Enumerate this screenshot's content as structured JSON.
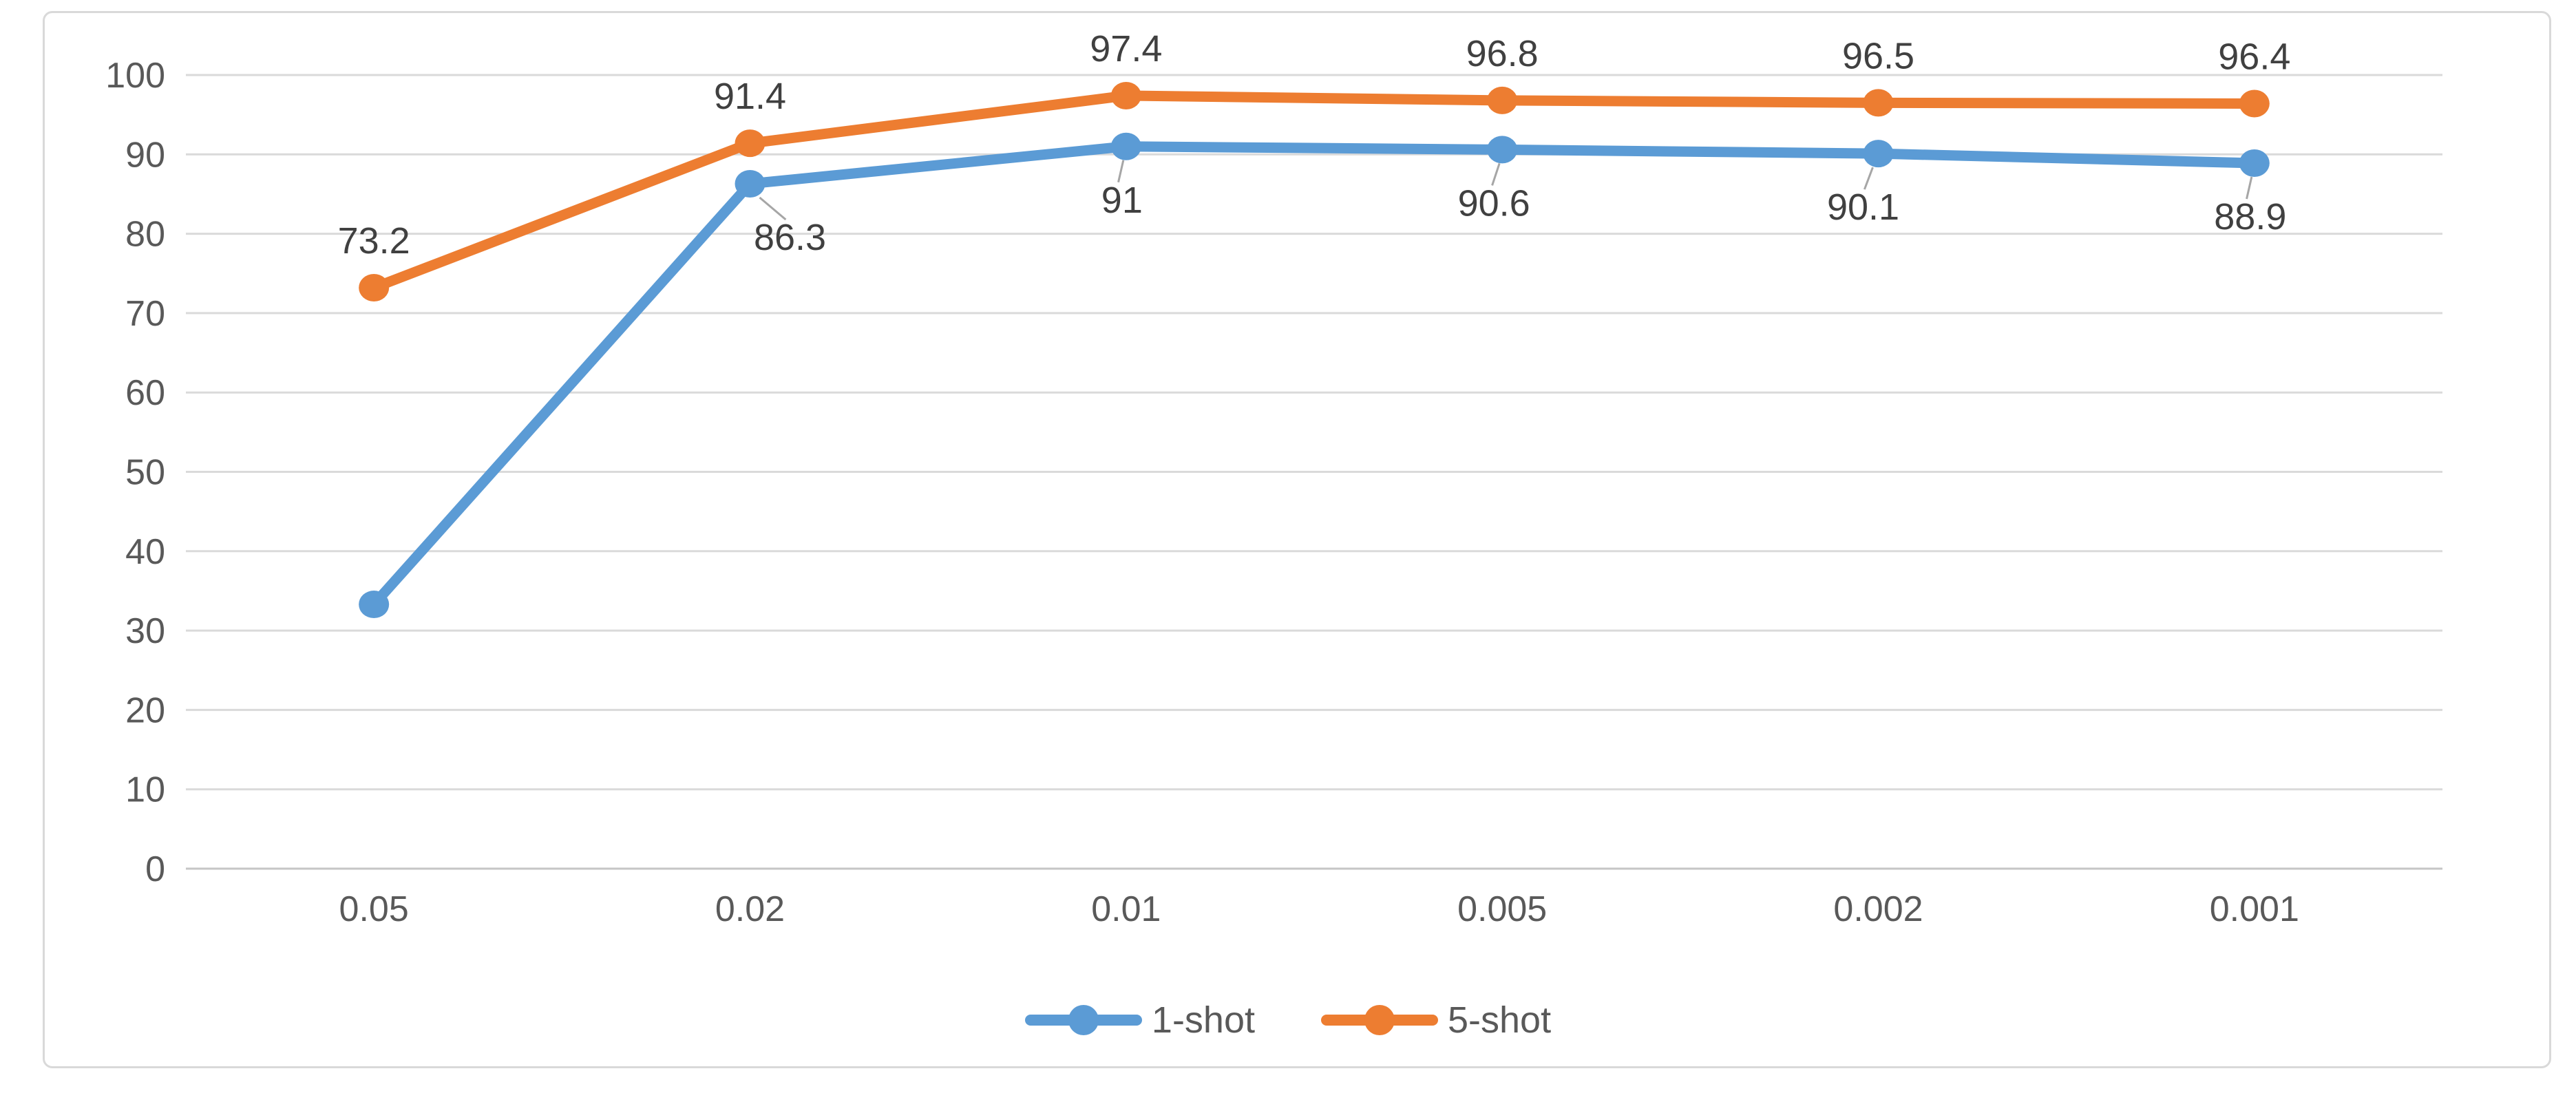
{
  "chart_data": {
    "type": "line",
    "title": "",
    "xlabel": "",
    "ylabel": "",
    "categories": [
      "0.05",
      "0.02",
      "0.01",
      "0.005",
      "0.002",
      "0.001"
    ],
    "series": [
      {
        "name": "1-shot",
        "color": "#5B9BD5",
        "values": [
          33.3,
          86.3,
          91,
          90.6,
          90.1,
          88.9
        ],
        "labels": [
          "",
          "86.3",
          "91",
          "90.6",
          "90.1",
          "88.9"
        ],
        "label_position": "below"
      },
      {
        "name": "5-shot",
        "color": "#ED7D31",
        "values": [
          73.2,
          91.4,
          97.4,
          96.8,
          96.5,
          96.4
        ],
        "labels": [
          "73.2",
          "91.4",
          "97.4",
          "96.8",
          "96.5",
          "96.4"
        ],
        "label_position": "above"
      }
    ],
    "ylim": [
      0,
      100
    ],
    "y_ticks": [
      0,
      10,
      20,
      30,
      40,
      50,
      60,
      70,
      80,
      90,
      100
    ],
    "grid": true,
    "legend_position": "bottom-center"
  },
  "legend": {
    "items": [
      {
        "label": "1-shot",
        "color": "#5B9BD5"
      },
      {
        "label": "5-shot",
        "color": "#ED7D31"
      }
    ]
  },
  "colors": {
    "background": "#FFFFFF",
    "frame_border": "#D9D9D9",
    "gridline": "#DADADA",
    "axis_line": "#C6C6C6",
    "tick_text": "#595959",
    "data_label_text": "#404040",
    "leader_line": "#A6A6A6"
  }
}
